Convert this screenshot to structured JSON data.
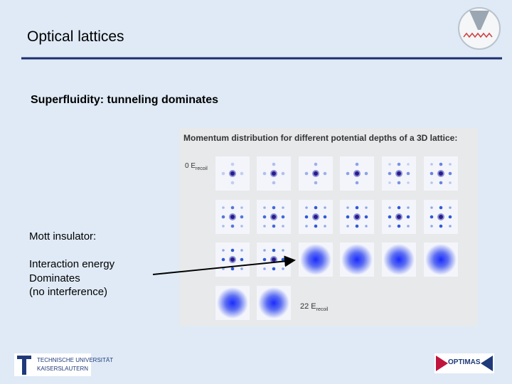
{
  "header": {
    "title": "Optical lattices"
  },
  "body": {
    "heading": "Superfluidity: tunneling dominates",
    "mott": "Mott insulator:",
    "lines": [
      "Interaction energy",
      "Dominates",
      "(no interference)"
    ]
  },
  "figure": {
    "title": "Momentum distribution for different potential depths of a 3D lattice:",
    "start_label": {
      "text": "0 E",
      "sub": "recoil"
    },
    "end_label": {
      "text": "22 E",
      "sub": "recoil"
    }
  },
  "footer": {
    "left_logo": [
      "TECHNISCHE UNIVERSITÄT",
      "KAISERSLAUTERN"
    ],
    "right_logo": "OPTIMAS"
  }
}
